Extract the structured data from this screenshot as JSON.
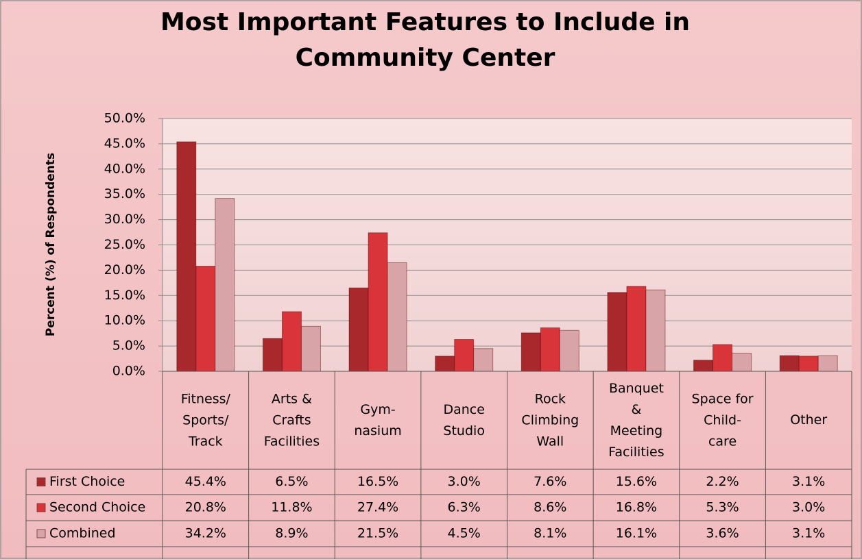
{
  "chart_data": {
    "type": "bar",
    "title": "Most Important Features to Include in\nCommunity Center",
    "ylabel": "Percent (%) of Respondents",
    "categories": [
      "Fitness/\nSports/\nTrack",
      "Arts &\nCrafts\nFacilities",
      "Gym-\nnasium",
      "Dance\nStudio",
      "Rock\nClimbing\nWall",
      "Banquet\n&\nMeeting\nFacilities",
      "Space for\nChild-\ncare",
      "Other"
    ],
    "series": [
      {
        "name": "First Choice",
        "color": "#a8282c",
        "values": [
          45.4,
          6.5,
          16.5,
          3.0,
          7.6,
          15.6,
          2.2,
          3.1
        ],
        "value_labels": [
          "45.4%",
          "6.5%",
          "16.5%",
          "3.0%",
          "7.6%",
          "15.6%",
          "2.2%",
          "3.1%"
        ]
      },
      {
        "name": "Second Choice",
        "color": "#d8343a",
        "values": [
          20.8,
          11.8,
          27.4,
          6.3,
          8.6,
          16.8,
          5.3,
          3.0
        ],
        "value_labels": [
          "20.8%",
          "11.8%",
          "27.4%",
          "6.3%",
          "8.6%",
          "16.8%",
          "5.3%",
          "3.0%"
        ]
      },
      {
        "name": "Combined",
        "color": "#d9a4a8",
        "values": [
          34.2,
          8.9,
          21.5,
          4.5,
          8.1,
          16.1,
          3.6,
          3.1
        ],
        "value_labels": [
          "34.2%",
          "8.9%",
          "21.5%",
          "4.5%",
          "8.1%",
          "16.1%",
          "3.6%",
          "3.1%"
        ]
      }
    ],
    "ylim": [
      0,
      50
    ],
    "yticks": [
      {
        "value": 0,
        "label": "0.0%"
      },
      {
        "value": 5,
        "label": "5.0%"
      },
      {
        "value": 10,
        "label": "10.0%"
      },
      {
        "value": 15,
        "label": "15.0%"
      },
      {
        "value": 20,
        "label": "20.0%"
      },
      {
        "value": 25,
        "label": "25.0%"
      },
      {
        "value": 30,
        "label": "30.0%"
      },
      {
        "value": 35,
        "label": "35.0%"
      },
      {
        "value": 40,
        "label": "40.0%"
      },
      {
        "value": 45,
        "label": "45.0%"
      },
      {
        "value": 50,
        "label": "50.0%"
      }
    ],
    "grid": true
  }
}
